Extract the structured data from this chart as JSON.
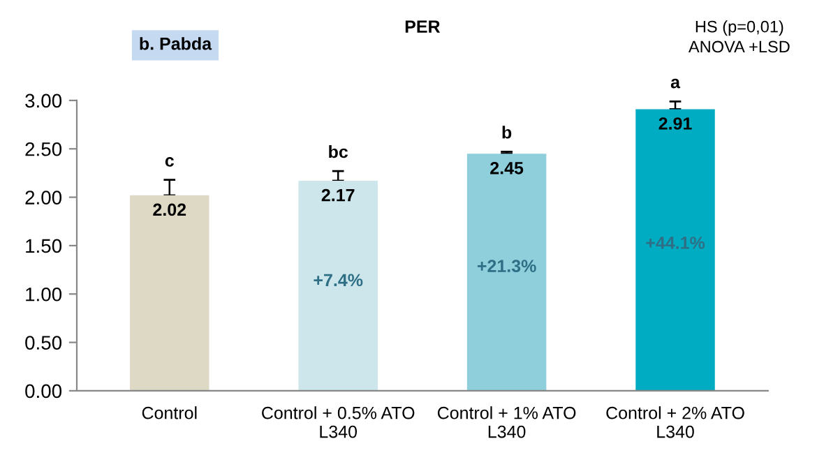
{
  "chart_data": {
    "type": "bar",
    "title": "PER",
    "categories": [
      "Control",
      "Control + 0.5% ATO\nL340",
      "Control + 1% ATO\nL340",
      "Control + 2% ATO\nL340"
    ],
    "values": [
      2.02,
      2.17,
      2.45,
      2.91
    ],
    "colors": [
      "#ddd9c4",
      "#cce6ec",
      "#8fcfdc",
      "#00acc1"
    ],
    "errors": [
      [
        2.02,
        2.18
      ],
      [
        2.17,
        2.27
      ],
      [
        2.45,
        2.47
      ],
      [
        2.91,
        2.99
      ]
    ],
    "data_labels": true,
    "ylim": [
      0,
      3
    ],
    "yticks": [
      {
        "value": 0,
        "label": "0.00"
      },
      {
        "value": 0.5,
        "label": "0.50"
      },
      {
        "value": 1,
        "label": "1.00"
      },
      {
        "value": 1.5,
        "label": "1.50"
      },
      {
        "value": 2,
        "label": "2.00"
      },
      {
        "value": 2.5,
        "label": "2.50"
      },
      {
        "value": 3,
        "label": "3.00"
      }
    ],
    "grid": false,
    "annotations": [
      "c",
      "bc",
      "b",
      "a",
      "+7.4%",
      "+21.3%",
      "+44.1%",
      "b. Pabda",
      "HS (p=0,01)\nANOVA +LSD"
    ]
  }
}
